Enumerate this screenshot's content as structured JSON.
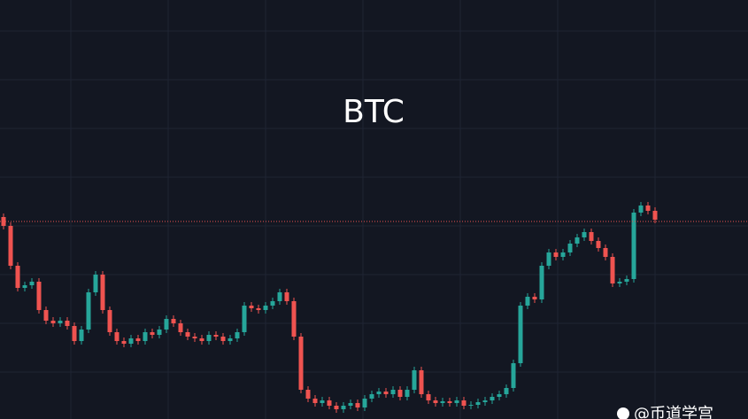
{
  "chart_data": {
    "type": "candlestick",
    "title": "BTC",
    "watermark": "@币道学宫",
    "ylim": [
      0,
      473
    ],
    "up_color": "#26a69a",
    "down_color": "#ef5350",
    "price_line": 223,
    "open": [
      228,
      218,
      173,
      148,
      151,
      155,
      123,
      111,
      108,
      111,
      105,
      88,
      101,
      143,
      163,
      123,
      98,
      88,
      85,
      91,
      88,
      98,
      95,
      101,
      113,
      108,
      98,
      93,
      91,
      88,
      95,
      93,
      88,
      91,
      98,
      128,
      125,
      123,
      128,
      133,
      143,
      133,
      93,
      33,
      23,
      18,
      21,
      15,
      11,
      15,
      18,
      13,
      23,
      28,
      31,
      28,
      33,
      25,
      33,
      55,
      28,
      21,
      18,
      20,
      18,
      21,
      15,
      16,
      19,
      21,
      25,
      28,
      35,
      63,
      128,
      138,
      135,
      173,
      188,
      183,
      188,
      198,
      205,
      211,
      201,
      193,
      183,
      153,
      155,
      158,
      233,
      241,
      235
    ],
    "high": [
      232,
      222,
      177,
      155,
      159,
      159,
      127,
      115,
      115,
      115,
      109,
      105,
      147,
      167,
      167,
      127,
      102,
      92,
      95,
      95,
      102,
      102,
      105,
      117,
      117,
      112,
      102,
      97,
      95,
      99,
      99,
      97,
      95,
      102,
      132,
      132,
      129,
      132,
      137,
      147,
      147,
      137,
      97,
      37,
      27,
      25,
      25,
      19,
      19,
      22,
      22,
      27,
      32,
      35,
      35,
      37,
      37,
      37,
      59,
      59,
      32,
      25,
      24,
      24,
      25,
      25,
      20,
      23,
      25,
      29,
      32,
      39,
      67,
      132,
      142,
      142,
      177,
      192,
      192,
      192,
      202,
      209,
      215,
      215,
      205,
      197,
      187,
      159,
      162,
      237,
      245,
      245,
      239
    ],
    "low": [
      214,
      169,
      144,
      144,
      147,
      119,
      107,
      104,
      104,
      101,
      84,
      84,
      97,
      139,
      119,
      94,
      84,
      81,
      81,
      84,
      84,
      91,
      91,
      97,
      104,
      94,
      89,
      87,
      84,
      84,
      89,
      84,
      84,
      87,
      94,
      121,
      119,
      119,
      124,
      129,
      129,
      89,
      29,
      19,
      14,
      14,
      11,
      7,
      7,
      11,
      9,
      9,
      19,
      24,
      24,
      24,
      21,
      21,
      29,
      24,
      17,
      14,
      14,
      14,
      14,
      11,
      11,
      12,
      15,
      17,
      21,
      24,
      31,
      59,
      124,
      131,
      131,
      169,
      179,
      179,
      184,
      194,
      201,
      197,
      189,
      179,
      149,
      149,
      151,
      154,
      229,
      231,
      221
    ],
    "close": [
      218,
      173,
      148,
      151,
      155,
      123,
      111,
      108,
      111,
      105,
      88,
      101,
      143,
      163,
      123,
      98,
      88,
      85,
      91,
      88,
      98,
      95,
      101,
      113,
      108,
      98,
      93,
      91,
      88,
      95,
      93,
      88,
      91,
      98,
      128,
      125,
      123,
      128,
      133,
      143,
      133,
      93,
      33,
      23,
      18,
      21,
      15,
      11,
      15,
      18,
      13,
      23,
      28,
      31,
      28,
      33,
      25,
      33,
      55,
      28,
      21,
      18,
      20,
      18,
      21,
      15,
      16,
      19,
      21,
      25,
      28,
      35,
      63,
      128,
      138,
      135,
      173,
      188,
      183,
      188,
      198,
      205,
      211,
      201,
      193,
      183,
      153,
      155,
      158,
      233,
      241,
      235,
      225
    ]
  }
}
